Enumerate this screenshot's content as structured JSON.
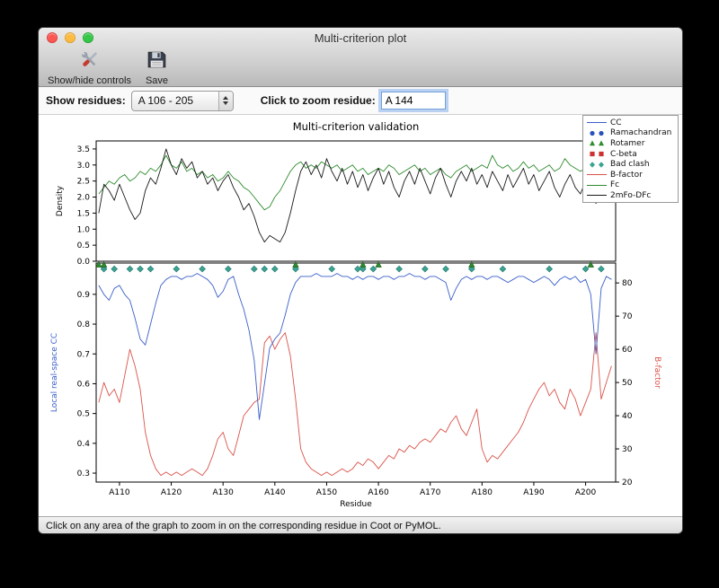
{
  "window": {
    "title": "Multi-criterion plot"
  },
  "toolbar": {
    "items": [
      {
        "label": "Show/hide controls",
        "icon": "tools-icon"
      },
      {
        "label": "Save",
        "icon": "save-icon"
      }
    ]
  },
  "controls": {
    "show_residues_label": "Show residues:",
    "residue_range_value": "A 106 - 205",
    "zoom_label": "Click to zoom residue:",
    "zoom_value": "A 144"
  },
  "status_bar": {
    "text": "Click on any area of the graph to zoom in on the corresponding residue in Coot or PyMOL."
  },
  "chart_data": {
    "type": "line",
    "title": "Multi-criterion validation",
    "xlabel": "Residue",
    "x_start": 106,
    "xlim": [
      105.5,
      205.8
    ],
    "x_ticks": [
      {
        "residue": 110,
        "label": "A110"
      },
      {
        "residue": 120,
        "label": "A120"
      },
      {
        "residue": 130,
        "label": "A130"
      },
      {
        "residue": 140,
        "label": "A140"
      },
      {
        "residue": 150,
        "label": "A150"
      },
      {
        "residue": 160,
        "label": "A160"
      },
      {
        "residue": 170,
        "label": "A170"
      },
      {
        "residue": 180,
        "label": "A180"
      },
      {
        "residue": 190,
        "label": "A190"
      },
      {
        "residue": 200,
        "label": "A200"
      }
    ],
    "legend": [
      {
        "label": "CC",
        "glyph": "line",
        "color": "#3a5fc8"
      },
      {
        "label": "Ramachandran",
        "glyph": "circles",
        "color": "#2a52be"
      },
      {
        "label": "Rotamer",
        "glyph": "triangles",
        "color": "#2e8b2e"
      },
      {
        "label": "C-beta",
        "glyph": "squares",
        "color": "#cc3333"
      },
      {
        "label": "Bad clash",
        "glyph": "diamonds",
        "color": "#3aa393"
      },
      {
        "label": "B-factor",
        "glyph": "line",
        "color": "#d9534a"
      },
      {
        "label": "Fc",
        "glyph": "line",
        "color": "#2e8b2e"
      },
      {
        "label": "2mFo-DFc",
        "glyph": "line",
        "color": "#1a1a1a"
      }
    ],
    "top": {
      "ylabel": "Density",
      "ylim": [
        0,
        3.75
      ],
      "yticks": [
        0.0,
        0.5,
        1.0,
        1.5,
        2.0,
        2.5,
        3.0,
        3.5
      ],
      "series": [
        {
          "name": "Fc",
          "color": "#2e8b2e",
          "values": [
            2.1,
            2.3,
            2.5,
            2.4,
            2.6,
            2.7,
            2.5,
            2.6,
            2.8,
            2.7,
            2.9,
            2.8,
            3.0,
            3.3,
            3.0,
            2.9,
            3.1,
            2.8,
            2.9,
            2.7,
            2.8,
            2.6,
            2.7,
            2.5,
            2.6,
            2.8,
            2.6,
            2.5,
            2.3,
            2.2,
            2.0,
            1.8,
            1.6,
            1.7,
            2.0,
            2.2,
            2.5,
            2.8,
            3.0,
            3.1,
            2.9,
            3.0,
            2.9,
            3.1,
            3.0,
            2.9,
            3.0,
            2.8,
            2.9,
            3.0,
            2.8,
            2.9,
            2.7,
            2.8,
            2.9,
            2.8,
            3.0,
            2.9,
            2.7,
            2.8,
            2.9,
            3.0,
            2.8,
            2.9,
            2.7,
            2.8,
            2.9,
            2.7,
            2.6,
            2.8,
            2.9,
            3.0,
            2.8,
            2.9,
            3.0,
            2.9,
            3.3,
            3.0,
            2.9,
            3.0,
            2.8,
            2.9,
            3.1,
            2.9,
            3.0,
            2.8,
            2.9,
            3.0,
            2.8,
            2.9,
            3.2,
            3.0,
            2.9,
            2.8,
            2.9,
            2.7,
            2.4,
            2.8,
            3.0,
            2.9
          ]
        },
        {
          "name": "2mFo-DFc",
          "color": "#1a1a1a",
          "values": [
            1.5,
            2.4,
            2.2,
            1.9,
            2.4,
            2.0,
            1.6,
            1.3,
            1.5,
            2.2,
            2.6,
            2.4,
            2.9,
            3.5,
            3.0,
            2.7,
            3.2,
            2.9,
            3.1,
            2.6,
            2.8,
            2.4,
            2.6,
            2.2,
            2.5,
            2.7,
            2.3,
            2.0,
            1.6,
            1.8,
            1.4,
            0.9,
            0.6,
            0.8,
            0.7,
            0.6,
            0.9,
            1.5,
            2.2,
            2.8,
            3.1,
            2.7,
            3.0,
            2.6,
            3.2,
            2.8,
            2.5,
            2.9,
            2.4,
            2.8,
            2.3,
            2.7,
            2.2,
            2.6,
            2.9,
            2.4,
            2.8,
            2.3,
            2.0,
            2.5,
            2.8,
            2.4,
            2.9,
            2.5,
            2.1,
            2.6,
            2.9,
            2.4,
            2.0,
            2.5,
            2.8,
            2.5,
            2.9,
            2.4,
            2.7,
            2.3,
            2.8,
            2.5,
            2.2,
            2.7,
            2.3,
            2.6,
            2.9,
            2.4,
            2.7,
            2.2,
            2.5,
            2.8,
            2.3,
            2.0,
            2.4,
            2.7,
            2.3,
            2.1,
            2.5,
            2.2,
            1.8,
            2.3,
            2.6,
            2.4
          ]
        }
      ]
    },
    "bottom": {
      "ylabel_left": "Local real-space CC",
      "ylabel_left_color": "#3a5fc8",
      "ylabel_right": "B-factor",
      "ylabel_right_color": "#d9534a",
      "ylim_left": [
        0.27,
        1.005
      ],
      "yticks_left": [
        0.3,
        0.4,
        0.5,
        0.6,
        0.7,
        0.8,
        0.9
      ],
      "ylim_right": [
        20,
        86
      ],
      "yticks_right": [
        20,
        30,
        40,
        50,
        60,
        70,
        80
      ],
      "series": [
        {
          "name": "CC",
          "axis": "left",
          "color": "#3a5fc8",
          "values": [
            0.93,
            0.9,
            0.88,
            0.92,
            0.93,
            0.9,
            0.88,
            0.82,
            0.75,
            0.73,
            0.8,
            0.87,
            0.93,
            0.95,
            0.96,
            0.96,
            0.95,
            0.96,
            0.96,
            0.97,
            0.96,
            0.95,
            0.93,
            0.89,
            0.91,
            0.95,
            0.96,
            0.9,
            0.85,
            0.78,
            0.68,
            0.48,
            0.6,
            0.72,
            0.75,
            0.77,
            0.83,
            0.9,
            0.94,
            0.96,
            0.96,
            0.96,
            0.97,
            0.96,
            0.96,
            0.96,
            0.97,
            0.96,
            0.96,
            0.95,
            0.96,
            0.95,
            0.96,
            0.96,
            0.95,
            0.96,
            0.96,
            0.95,
            0.96,
            0.96,
            0.97,
            0.96,
            0.96,
            0.95,
            0.96,
            0.96,
            0.95,
            0.94,
            0.88,
            0.92,
            0.95,
            0.96,
            0.95,
            0.96,
            0.96,
            0.95,
            0.96,
            0.96,
            0.95,
            0.94,
            0.95,
            0.96,
            0.96,
            0.95,
            0.94,
            0.95,
            0.96,
            0.95,
            0.93,
            0.95,
            0.96,
            0.95,
            0.96,
            0.94,
            0.95,
            0.9,
            0.7,
            0.92,
            0.96,
            0.95
          ]
        },
        {
          "name": "B-factor",
          "axis": "right",
          "color": "#d9534a",
          "values": [
            44,
            50,
            46,
            48,
            44,
            52,
            60,
            55,
            48,
            35,
            28,
            24,
            22,
            23,
            22,
            23,
            22,
            23,
            24,
            23,
            22,
            24,
            28,
            33,
            35,
            30,
            28,
            34,
            40,
            42,
            44,
            45,
            62,
            64,
            60,
            63,
            65,
            58,
            45,
            30,
            26,
            24,
            23,
            22,
            23,
            22,
            23,
            24,
            23,
            24,
            26,
            25,
            27,
            26,
            24,
            26,
            28,
            27,
            30,
            29,
            31,
            30,
            32,
            33,
            32,
            34,
            36,
            35,
            38,
            40,
            36,
            34,
            38,
            42,
            30,
            26,
            28,
            27,
            29,
            31,
            33,
            35,
            38,
            42,
            45,
            48,
            50,
            46,
            48,
            44,
            42,
            48,
            45,
            40,
            44,
            48,
            65,
            45,
            50,
            55
          ]
        }
      ],
      "markers": [
        {
          "name": "Bad clash",
          "shape": "diamond",
          "color": "#3aa393",
          "edge": "#1f7468",
          "y": 0.985,
          "residues": [
            107,
            109,
            112,
            114,
            116,
            121,
            126,
            131,
            136,
            138,
            140,
            144,
            151,
            156,
            157,
            159,
            164,
            169,
            173,
            178,
            184,
            193,
            200,
            203
          ]
        },
        {
          "name": "Rotamer",
          "shape": "triangle",
          "color": "#2e8b2e",
          "edge": "#1c5c1c",
          "y": 0.999,
          "residues": [
            106,
            107,
            144,
            157,
            160,
            178,
            201
          ]
        },
        {
          "name": "Ramachandran",
          "shape": "circle",
          "color": "#2a52be",
          "edge": "#1c3a8a",
          "y": 0.999,
          "residues": []
        },
        {
          "name": "C-beta",
          "shape": "square",
          "color": "#cc3333",
          "edge": "#8a1f1f",
          "y": 0.999,
          "residues": []
        }
      ]
    }
  }
}
